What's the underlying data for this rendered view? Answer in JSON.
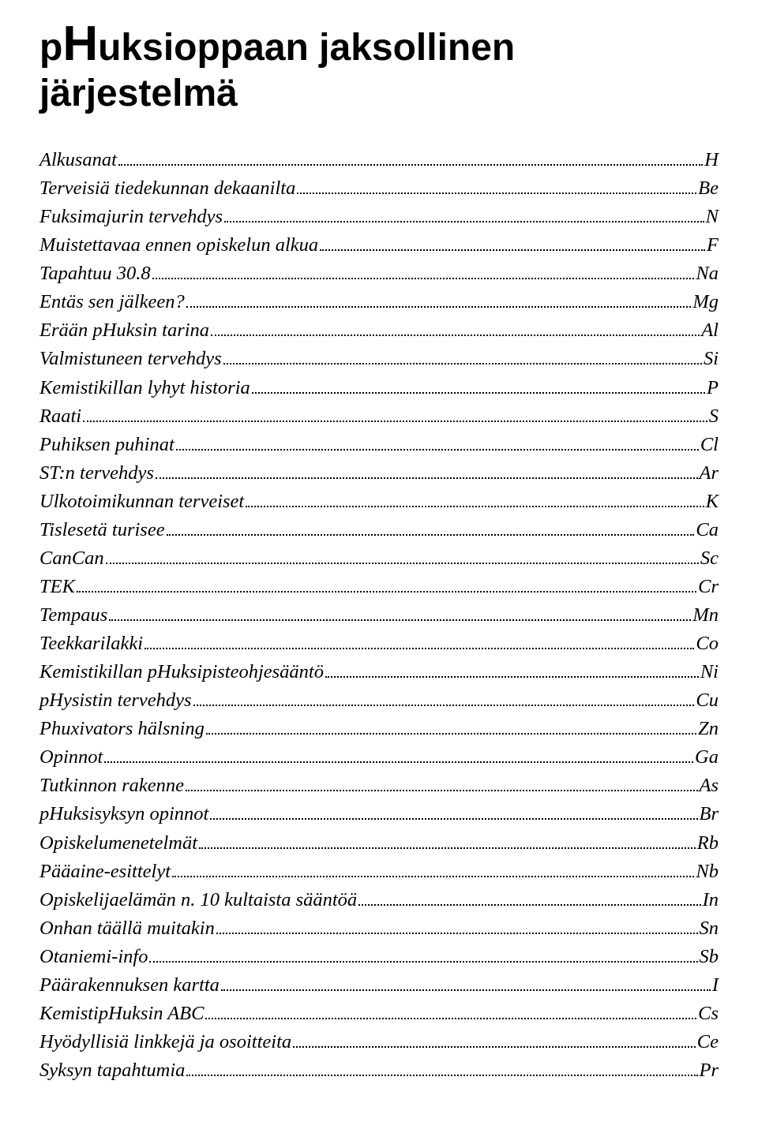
{
  "title_prefix": "p",
  "title_big": "H",
  "title_rest": "uksioppaan jaksollinen järjestelmä",
  "toc": [
    {
      "label": "Alkusanat",
      "sym": "H"
    },
    {
      "label": "Terveisiä tiedekunnan dekaanilta",
      "sym": "Be"
    },
    {
      "label": "Fuksimajurin tervehdys",
      "sym": "N"
    },
    {
      "label": "Muistettavaa ennen opiskelun alkua",
      "sym": "F"
    },
    {
      "label": "Tapahtuu 30.8",
      "sym": "Na"
    },
    {
      "label": "Entäs sen jälkeen?",
      "sym": "Mg"
    },
    {
      "label": "Erään pHuksin tarina",
      "sym": "Al"
    },
    {
      "label": "Valmistuneen tervehdys",
      "sym": "Si"
    },
    {
      "label": "Kemistikillan lyhyt historia",
      "sym": "P"
    },
    {
      "label": "Raati",
      "sym": "S"
    },
    {
      "label": "Puhiksen puhinat",
      "sym": "Cl"
    },
    {
      "label": "ST:n tervehdys",
      "sym": "Ar"
    },
    {
      "label": "Ulkotoimikunnan terveiset",
      "sym": "K"
    },
    {
      "label": "Tislesetä turisee",
      "sym": "Ca"
    },
    {
      "label": "CanCan",
      "sym": "Sc"
    },
    {
      "label": "TEK",
      "sym": "Cr"
    },
    {
      "label": "Tempaus",
      "sym": "Mn"
    },
    {
      "label": "Teekkarilakki",
      "sym": "Co"
    },
    {
      "label": "Kemistikillan pHuksipisteohjesääntö",
      "sym": "Ni"
    },
    {
      "label": "pHysistin tervehdys",
      "sym": "Cu"
    },
    {
      "label": "Phuxivators hälsning",
      "sym": "Zn"
    },
    {
      "label": "Opinnot",
      "sym": "Ga"
    },
    {
      "label": "Tutkinnon rakenne",
      "sym": "As"
    },
    {
      "label": "pHuksisyksyn opinnot",
      "sym": "Br"
    },
    {
      "label": "Opiskelumenetelmät",
      "sym": "Rb"
    },
    {
      "label": "Pääaine-esittelyt",
      "sym": "Nb"
    },
    {
      "label": "Opiskelijaelämän n. 10 kultaista sääntöä",
      "sym": "In"
    },
    {
      "label": "Onhan täällä muitakin",
      "sym": "Sn"
    },
    {
      "label": "Otaniemi-info",
      "sym": "Sb"
    },
    {
      "label": "Päärakennuksen kartta",
      "sym": "I"
    },
    {
      "label": "KemistipHuksin ABC",
      "sym": "Cs"
    },
    {
      "label": "Hyödyllisiä linkkejä ja osoitteita",
      "sym": "Ce"
    },
    {
      "label": "Syksyn tapahtumia",
      "sym": "Pr"
    }
  ]
}
